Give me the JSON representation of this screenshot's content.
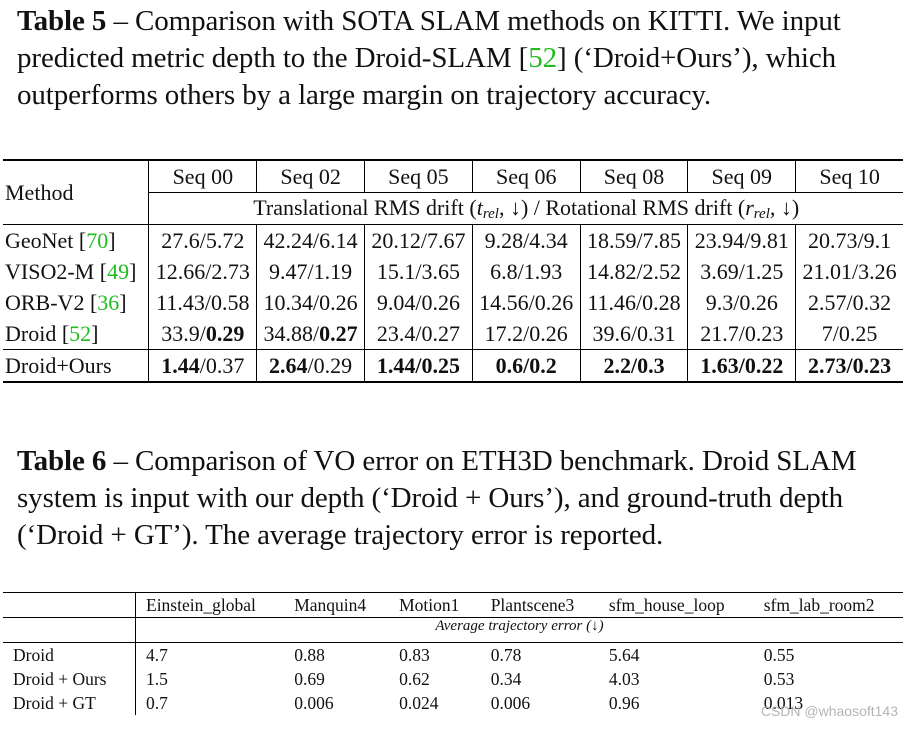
{
  "table5": {
    "caption_label": "Table 5",
    "caption_text_1": " – Comparison with SOTA SLAM methods on KITTI. We input predicted metric depth to the Droid-SLAM ",
    "caption_cite": "52",
    "caption_text_2": " (‘Droid+Ours’), which outperforms others by a large margin on trajectory accuracy.",
    "method_header": "Method",
    "seq_headers": [
      "Seq 00",
      "Seq 02",
      "Seq 05",
      "Seq 06",
      "Seq 08",
      "Seq 09",
      "Seq 10"
    ],
    "subheader_prefix": "Translational RMS drift (",
    "subheader_t": "t",
    "subheader_rel": "rel",
    "subheader_mid": ", ↓) / Rotational RMS drift (",
    "subheader_r": "r",
    "subheader_suffix": ", ↓)",
    "rows": [
      {
        "name": "GeoNet ",
        "cite": "70",
        "cells": [
          "27.6/5.72",
          "42.24/6.14",
          "20.12/7.67",
          "9.28/4.34",
          "18.59/7.85",
          "23.94/9.81",
          "20.73/9.1"
        ]
      },
      {
        "name": "VISO2-M ",
        "cite": "49",
        "cells": [
          "12.66/2.73",
          "9.47/1.19",
          "15.1/3.65",
          "6.8/1.93",
          "14.82/2.52",
          "3.69/1.25",
          "21.01/3.26"
        ]
      },
      {
        "name": "ORB-V2 ",
        "cite": "36",
        "cells": [
          "11.43/0.58",
          "10.34/0.26",
          "9.04/0.26",
          "14.56/0.26",
          "11.46/0.28",
          "9.3/0.26",
          "2.57/0.32"
        ]
      },
      {
        "name": "Droid ",
        "cite": "52",
        "cells": [
          "33.9/",
          "34.88/",
          "23.4/0.27",
          "17.2/0.26",
          "39.6/0.31",
          "21.7/0.23",
          "7/0.25"
        ],
        "bold_tail": [
          "0.29",
          "0.27"
        ]
      },
      {
        "name": "Droid+Ours",
        "cells_a": [
          "1.44",
          "2.64",
          "1.44",
          "0.6",
          "2.2",
          "1.63",
          "2.73"
        ],
        "cells_b": [
          "/0.37",
          "/0.29",
          "/",
          "/",
          "/",
          "/",
          "/"
        ],
        "cells_c": [
          "",
          "",
          "0.25",
          "0.2",
          "0.3",
          "0.22",
          "0.23"
        ]
      }
    ]
  },
  "table6": {
    "caption_label": "Table 6",
    "caption_text": " – Comparison of VO error on ETH3D benchmark. Droid SLAM system is input with our depth (‘Droid + Ours’), and ground-truth depth (‘Droid + GT’). The average trajectory error is reported.",
    "columns": [
      "Einstein_global",
      "Manquin4",
      "Motion1",
      "Plantscene3",
      "sfm_house_loop",
      "sfm_lab_room2"
    ],
    "subheader": "Average trajectory error (↓)",
    "rows": [
      {
        "name": "Droid",
        "cells": [
          "4.7",
          "0.88",
          "0.83",
          "0.78",
          "5.64",
          "0.55"
        ]
      },
      {
        "name": "Droid + Ours",
        "cells": [
          "1.5",
          "0.69",
          "0.62",
          "0.34",
          "4.03",
          "0.53"
        ]
      },
      {
        "name": "Droid + GT",
        "cells": [
          "0.7",
          "0.006",
          "0.024",
          "0.006",
          "0.96",
          "0.013"
        ]
      }
    ]
  },
  "watermark": "CSDN @whaosoft143"
}
